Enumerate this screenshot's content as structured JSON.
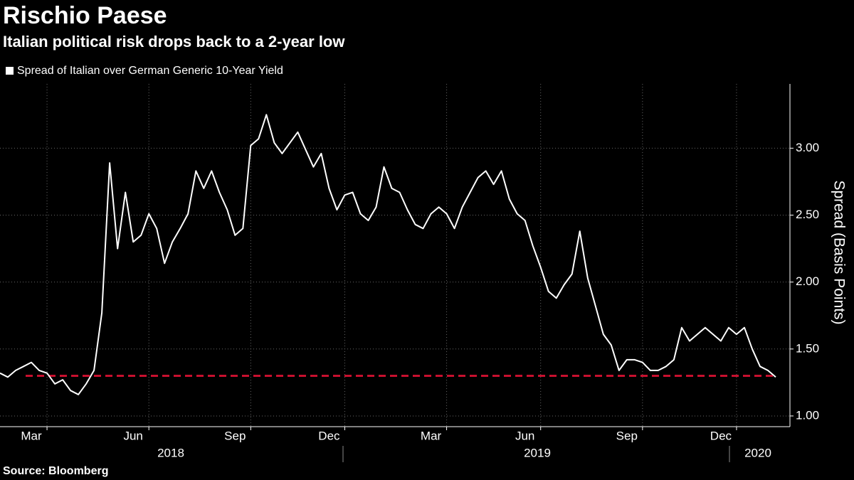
{
  "chart_data": {
    "type": "line",
    "title": "Rischio Paese",
    "subtitle": "Italian political risk drops back to a 2-year low",
    "y_label": "Spread (Basis Points)",
    "source": "Source: Bloomberg",
    "categories": [
      null,
      null,
      null,
      null,
      "Mar",
      null,
      null,
      null,
      null,
      null,
      null,
      null,
      null,
      null,
      null,
      null,
      null,
      "Jun",
      null,
      null,
      null,
      null,
      null,
      null,
      null,
      null,
      null,
      null,
      null,
      null,
      "Sep",
      null,
      null,
      null,
      null,
      null,
      null,
      null,
      null,
      null,
      null,
      null,
      "Dec",
      null,
      null,
      null,
      null,
      null,
      null,
      null,
      null,
      null,
      null,
      null,
      null,
      "Mar",
      null,
      null,
      null,
      null,
      null,
      null,
      null,
      null,
      null,
      null,
      null,
      "Jun",
      null,
      null,
      null,
      null,
      null,
      null,
      null,
      null,
      null,
      null,
      null,
      null,
      "Sep",
      null,
      null,
      null,
      null,
      null,
      null,
      null,
      null,
      null,
      null,
      null,
      "Dec",
      null,
      null,
      null,
      null,
      null,
      null,
      null
    ],
    "year_labels": [
      "2018",
      "2019",
      "2020"
    ],
    "series": [
      {
        "name": "Spread of Italian over German Generic 10-Year Yield",
        "color": "#ffffff",
        "values": [
          1.32,
          1.29,
          1.34,
          1.37,
          1.4,
          1.34,
          1.32,
          1.24,
          1.27,
          1.19,
          1.16,
          1.24,
          1.34,
          1.77,
          2.89,
          2.25,
          2.67,
          2.3,
          2.35,
          2.51,
          2.4,
          2.14,
          2.3,
          2.4,
          2.51,
          2.83,
          2.7,
          2.83,
          2.67,
          2.54,
          2.35,
          2.4,
          3.02,
          3.07,
          3.25,
          3.04,
          2.96,
          3.04,
          3.12,
          2.99,
          2.86,
          2.96,
          2.7,
          2.54,
          2.65,
          2.67,
          2.51,
          2.46,
          2.56,
          2.86,
          2.7,
          2.67,
          2.54,
          2.43,
          2.4,
          2.51,
          2.56,
          2.51,
          2.4,
          2.56,
          2.67,
          2.78,
          2.83,
          2.73,
          2.83,
          2.62,
          2.51,
          2.46,
          2.27,
          2.11,
          1.93,
          1.88,
          1.98,
          2.06,
          2.38,
          2.03,
          1.82,
          1.61,
          1.53,
          1.34,
          1.42,
          1.42,
          1.4,
          1.34,
          1.34,
          1.37,
          1.42,
          1.66,
          1.56,
          1.61,
          1.66,
          1.61,
          1.56,
          1.66,
          1.61,
          1.66,
          1.5,
          1.37,
          1.34,
          1.29
        ]
      }
    ],
    "reference_line": {
      "value": 1.3,
      "color": "#c8102e"
    },
    "ylim": [
      0.92,
      3.48
    ],
    "yticks": [
      {
        "value": 1,
        "label": "1.00"
      },
      {
        "value": 1.5,
        "label": "1.50"
      },
      {
        "value": 2,
        "label": "2.00"
      },
      {
        "value": 2.5,
        "label": "2.50"
      },
      {
        "value": 3,
        "label": "3.00"
      }
    ],
    "grid": true
  }
}
